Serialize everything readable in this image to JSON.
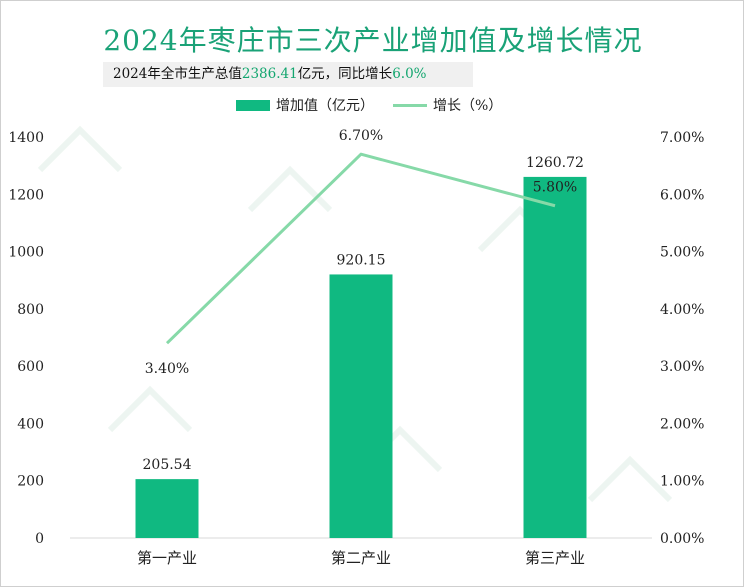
{
  "title": "2024年枣庄市三次产业增加值及增长情况",
  "subtitle": {
    "prefix": "2024年全市生产总值",
    "gdp_value": "2386.41",
    "middle": "亿元，同比增长",
    "growth_value": "6.0%"
  },
  "legend": {
    "bar_label": "增加值（亿元）",
    "line_label": "增长（%）"
  },
  "colors": {
    "bar": "#10b981",
    "line": "#86d9a8",
    "title": "#1aa277"
  },
  "chart_data": {
    "type": "bar",
    "categories": [
      "第一产业",
      "第二产业",
      "第三产业"
    ],
    "series": [
      {
        "name": "增加值（亿元）",
        "type": "bar",
        "axis": "left",
        "values": [
          205.54,
          920.15,
          1260.72
        ],
        "labels": [
          "205.54",
          "920.15",
          "1260.72"
        ]
      },
      {
        "name": "增长（%）",
        "type": "line",
        "axis": "right",
        "values": [
          3.4,
          6.7,
          5.8
        ],
        "labels": [
          "3.40%",
          "6.70%",
          "5.80%"
        ]
      }
    ],
    "y_left": {
      "min": 0,
      "max": 1400,
      "ticks": [
        0,
        200,
        400,
        600,
        800,
        1000,
        1200,
        1400
      ],
      "tick_labels": [
        "0",
        "200",
        "400",
        "600",
        "800",
        "1000",
        "1200",
        "1400"
      ]
    },
    "y_right": {
      "min": 0,
      "max": 7,
      "ticks": [
        0,
        1,
        2,
        3,
        4,
        5,
        6,
        7
      ],
      "tick_labels": [
        "0.00%",
        "1.00%",
        "2.00%",
        "3.00%",
        "4.00%",
        "5.00%",
        "6.00%",
        "7.00%"
      ]
    },
    "grid": false,
    "legend_position": "top"
  }
}
